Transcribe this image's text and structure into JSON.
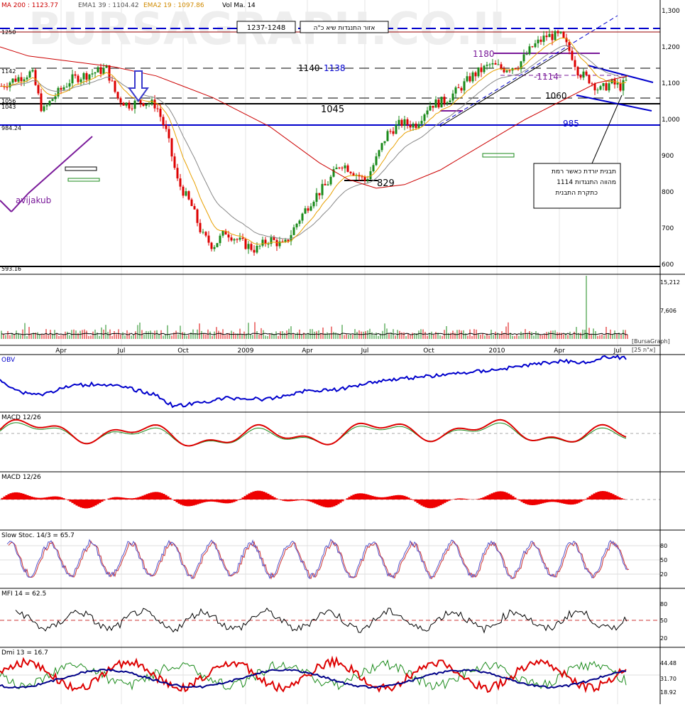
{
  "watermark": "BURSAGRAPH.CO.IL",
  "author": "avijakub",
  "price_panel": {
    "legend": [
      {
        "label": "MA 200 : 1123.77",
        "color": "#cc0000"
      },
      {
        "label": "EMA1 39 : 1104.42",
        "color": "#888888"
      },
      {
        "label": "EMA2 19 : 1097.86",
        "color": "#e8a000"
      },
      {
        "label": "Vol Ma. 14",
        "color": "#000000"
      }
    ],
    "y_ticks": [
      "1,300",
      "1,200",
      "1,100",
      "1,000",
      "900",
      "800",
      "700",
      "600"
    ],
    "left_levels": [
      "1250",
      "1142",
      "1056",
      "1043",
      "984.24",
      "593.16"
    ],
    "annotations": {
      "resistance_range": "1237-1248",
      "resistance_zone": "אזור התנגדות שיא כ\"ה",
      "level_1180": "1180",
      "level_1140_1138_a": "1140-",
      "level_1140_1138_b": "1138",
      "level_1114": "-1114-",
      "level_1060": "1060",
      "level_1045": "1045",
      "level_985": "985",
      "level_829": "829",
      "note_line1": "תבנית יורדת כאשר רמת",
      "note_line2": "מהווה התנגדות    1114",
      "note_line3": "כתקרת התבנית"
    }
  },
  "volume_panel": {
    "y_ticks": [
      "15,212",
      "7,606"
    ],
    "source": "[BursaGraph]",
    "date_tag": "[25 א\"ת]"
  },
  "x_axis": {
    "labels": [
      "Apr",
      "Jul",
      "Oct",
      "2009",
      "Apr",
      "Jul",
      "Oct",
      "2010",
      "Apr",
      "Jul"
    ]
  },
  "indicators": {
    "obv": {
      "title": "OBV"
    },
    "macd_line": {
      "title": "MACD 12/26"
    },
    "macd_hist": {
      "title": "MACD 12/26"
    },
    "stoch": {
      "title": "Slow Stoc. 14/3 = 65.7",
      "y_ticks": [
        "80",
        "50",
        "20"
      ]
    },
    "mfi": {
      "title": "MFI 14 = 62.5",
      "y_ticks": [
        "80",
        "50",
        "20"
      ]
    },
    "dmi": {
      "title": "Dmi 13 = 16.7",
      "y_ticks": [
        "44.48",
        "31.70",
        "18.92"
      ]
    }
  },
  "colors": {
    "bull": "#1a8a1a",
    "bear": "#dd0000",
    "ma200": "#cc0000",
    "ema39": "#888888",
    "ema19": "#e8a000",
    "blue": "#0000cc",
    "purple": "#7a1a9a"
  },
  "chart_data": {
    "type": "candlestick",
    "x": [
      "2008-01",
      "2008-04",
      "2008-07",
      "2008-10",
      "2009-01",
      "2009-04",
      "2009-07",
      "2009-10",
      "2010-01",
      "2010-04",
      "2010-07"
    ],
    "close_approx": [
      1080,
      1130,
      1050,
      700,
      620,
      720,
      870,
      1000,
      1110,
      1210,
      1085
    ],
    "ylim": [
      590,
      1300
    ],
    "horizontal_levels": [
      1250,
      1180,
      1142,
      1114,
      1060,
      1056,
      1045,
      984.24,
      829,
      593.16
    ],
    "volume_ylim": [
      0,
      15212
    ]
  }
}
